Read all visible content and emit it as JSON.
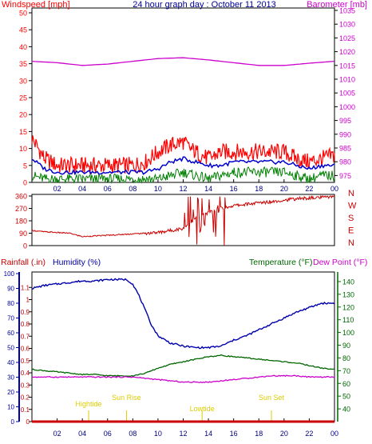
{
  "colors": {
    "windspeed": "#ff0000",
    "gust": "#ff0000",
    "avg_wind": "#0000cc",
    "min_wind": "#008000",
    "barometer": "#cc00cc",
    "direction": "#cc0000",
    "rainfall": "#cc0000",
    "humidity": "#0000aa",
    "temperature": "#006600",
    "dewpoint": "#cc00cc",
    "events": "#ddcc00",
    "title": "#000099",
    "grid": "#000000"
  },
  "chart_data": [
    {
      "type": "line",
      "panel": "wind-barometer",
      "title": "24 hour graph day : October 11 2013",
      "ylabel": "Windspeed [mph]",
      "y2label": "Barometer [mb]",
      "xticks": [
        "02",
        "04",
        "06",
        "08",
        "10",
        "12",
        "14",
        "16",
        "18",
        "20",
        "22",
        "00"
      ],
      "x_hours": [
        2,
        4,
        6,
        8,
        10,
        12,
        14,
        16,
        18,
        20,
        22,
        24
      ],
      "xlim": [
        0,
        24
      ],
      "yticks": [
        "0",
        "5",
        "10",
        "15",
        "20",
        "25",
        "30",
        "35",
        "40",
        "45",
        "50"
      ],
      "ylim": [
        0,
        50
      ],
      "y2ticks": [
        "975",
        "980",
        "985",
        "990",
        "995",
        "1000",
        "1005",
        "1010",
        "1015",
        "1020",
        "1025",
        "1030",
        "1035"
      ],
      "y2lim": [
        972.5,
        1035
      ],
      "series": [
        {
          "name": "Windspeed",
          "color": "windspeed",
          "x": [
            0,
            0.5,
            1,
            2,
            3,
            4,
            5,
            6,
            7,
            8,
            9,
            10,
            11,
            12,
            12.5,
            13,
            14,
            15,
            16,
            17,
            18,
            19,
            20,
            21,
            22,
            23,
            24
          ],
          "y": [
            12,
            9,
            6,
            4,
            4,
            4,
            4,
            4,
            4,
            4,
            5,
            8,
            10,
            11,
            9,
            8,
            6,
            8,
            8,
            8,
            8,
            8,
            8,
            6,
            5,
            6,
            7
          ]
        },
        {
          "name": "Average",
          "color": "avg_wind",
          "x": [
            0,
            1,
            2,
            3,
            4,
            5,
            6,
            7,
            8,
            9,
            10,
            11,
            12,
            13,
            14,
            15,
            16,
            17,
            18,
            19,
            20,
            21,
            22,
            23,
            24
          ],
          "y": [
            7,
            4,
            3,
            3,
            3,
            3,
            3,
            3,
            3,
            3,
            4,
            6,
            7,
            6,
            5,
            5,
            6,
            6,
            6,
            6,
            6,
            5,
            4,
            5,
            5
          ]
        },
        {
          "name": "Minimum",
          "color": "min_wind",
          "x": [
            0,
            1,
            2,
            3,
            4,
            5,
            6,
            7,
            8,
            9,
            10,
            11,
            12,
            13,
            14,
            15,
            16,
            17,
            18,
            19,
            20,
            21,
            22,
            23,
            24
          ],
          "y": [
            2,
            1,
            1,
            1,
            1,
            1,
            1,
            1,
            1,
            1,
            1,
            2,
            3,
            2,
            1,
            2,
            3,
            3,
            3,
            3,
            3,
            2,
            1,
            2,
            2
          ]
        },
        {
          "name": "Barometer",
          "axis": "y2",
          "color": "barometer",
          "x": [
            0,
            2,
            4,
            6,
            8,
            10,
            12,
            14,
            16,
            18,
            20,
            22,
            24
          ],
          "y": [
            1016.5,
            1016,
            1015,
            1015.5,
            1016.5,
            1017.5,
            1017.8,
            1017,
            1016,
            1015,
            1015,
            1015.8,
            1016.5
          ]
        }
      ]
    },
    {
      "type": "line",
      "panel": "wind-direction",
      "yticks": [
        "0",
        "90",
        "180",
        "270",
        "360"
      ],
      "ylim": [
        0,
        360
      ],
      "compass_labels": [
        "N",
        "W",
        "S",
        "E",
        "N"
      ],
      "xlim": [
        0,
        24
      ],
      "series": [
        {
          "name": "Wind Direction",
          "color": "direction",
          "x": [
            0,
            1,
            2,
            3,
            4,
            5,
            6,
            7,
            8,
            9,
            10,
            11,
            12,
            12.5,
            13,
            14,
            15,
            16,
            17,
            18,
            19,
            20,
            21,
            22,
            23,
            24
          ],
          "y": [
            110,
            100,
            95,
            90,
            65,
            70,
            75,
            80,
            85,
            90,
            95,
            110,
            125,
            160,
            200,
            240,
            270,
            290,
            300,
            310,
            320,
            330,
            340,
            345,
            350,
            360
          ]
        }
      ]
    },
    {
      "type": "line",
      "panel": "humidity-temperature",
      "ylabel_left_outer": "Rainfall (.in)",
      "ylabel_left_inner": "Humidity (%)",
      "ylabel_right": "Temperature (°F)",
      "ylabel_right2": "Dew Point (°F)",
      "rain_ticks": [
        "0",
        "0.1",
        "0.2",
        "0.3",
        "0.4",
        "0.5",
        "0.6",
        "0.7",
        "0.8",
        "0.9",
        "1",
        "1.1"
      ],
      "rain_lim": [
        0,
        1.2
      ],
      "humidity_ticks": [
        "0",
        "10",
        "20",
        "30",
        "40",
        "50",
        "60",
        "70",
        "80",
        "90",
        "100"
      ],
      "humidity_lim": [
        0,
        100
      ],
      "temp_ticks": [
        "40",
        "50",
        "60",
        "70",
        "80",
        "90",
        "100",
        "110",
        "120",
        "130",
        "140"
      ],
      "temp_lim": [
        30,
        145
      ],
      "xlim": [
        0,
        24
      ],
      "events": [
        {
          "label": "Sun Rise",
          "x": 7.5
        },
        {
          "label": "Lowtide",
          "x": 13.5
        },
        {
          "label": "Sun Set",
          "x": 19
        },
        {
          "label": "Hightide",
          "x": 4.5
        }
      ],
      "series": [
        {
          "name": "Humidity",
          "color": "humidity",
          "axis": "humidity",
          "x": [
            0,
            1,
            2,
            3,
            4,
            5,
            6,
            7,
            7.5,
            8,
            8.5,
            9,
            9.5,
            10,
            11,
            12,
            13,
            14,
            15,
            16,
            17,
            18,
            19,
            20,
            21,
            22,
            23,
            24
          ],
          "y": [
            90,
            92,
            93,
            94,
            95,
            95,
            96,
            96,
            96,
            93,
            85,
            75,
            65,
            58,
            53,
            51,
            50,
            50,
            51,
            55,
            58,
            62,
            66,
            70,
            74,
            77,
            80,
            80
          ]
        },
        {
          "name": "Temperature",
          "color": "temperature",
          "axis": "temp",
          "x": [
            0,
            1,
            2,
            3,
            4,
            5,
            6,
            7,
            8,
            9,
            10,
            11,
            12,
            13,
            14,
            15,
            16,
            17,
            18,
            19,
            20,
            21,
            22,
            23,
            24
          ],
          "y": [
            71,
            70,
            69,
            68,
            67,
            67,
            66,
            66,
            66,
            68,
            72,
            75,
            77,
            79,
            81,
            82,
            81,
            80,
            79,
            78,
            77,
            76,
            74,
            72,
            71
          ]
        },
        {
          "name": "Dew Point",
          "color": "dewpoint",
          "axis": "temp",
          "x": [
            0,
            1,
            2,
            3,
            4,
            5,
            6,
            7,
            8,
            9,
            10,
            11,
            12,
            13,
            14,
            15,
            16,
            17,
            18,
            19,
            20,
            21,
            22,
            23,
            24
          ],
          "y": [
            65,
            65,
            65,
            65,
            65,
            65,
            65,
            65,
            65,
            64,
            63,
            62,
            61,
            61,
            61,
            62,
            63,
            64,
            65,
            66,
            66,
            66,
            65,
            65,
            65
          ]
        },
        {
          "name": "Rainfall",
          "color": "rainfall",
          "axis": "rain",
          "x": [
            0,
            24
          ],
          "y": [
            0,
            0
          ]
        }
      ]
    }
  ]
}
